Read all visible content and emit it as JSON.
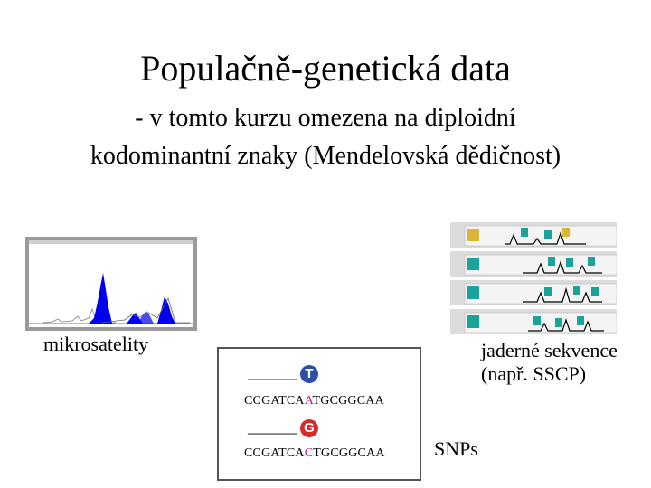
{
  "title": "Populačně-genetická data",
  "subtitle_line1": "- v tomto kurzu omezena na diploidní",
  "subtitle_line2": "kodominantní znaky (Mendelovská dědičnost)",
  "microsatellite_label": "mikrosatelity",
  "sequence_label_line1": "jaderné sekvence",
  "sequence_label_line2": "(např. SSCP)",
  "snp_label": "SNPs",
  "snp_example": {
    "blank_line": "______",
    "allele1": "T",
    "allele1_color": "#2e4fa8",
    "seq1_prefix": "CCGATCA",
    "seq1_snp": "A",
    "seq1_snp_color": "#c0208a",
    "seq1_suffix": "TGCGGCAA",
    "allele2": "G",
    "allele2_color": "#d62b2b",
    "seq2_prefix": "CCGATCA",
    "seq2_snp": "C",
    "seq2_snp_color": "#c0208a",
    "seq2_suffix": "TGCGGCAA"
  },
  "colors": {
    "chromatogram_peak": "#0000ee",
    "gel_marker": "#1aa39a"
  }
}
